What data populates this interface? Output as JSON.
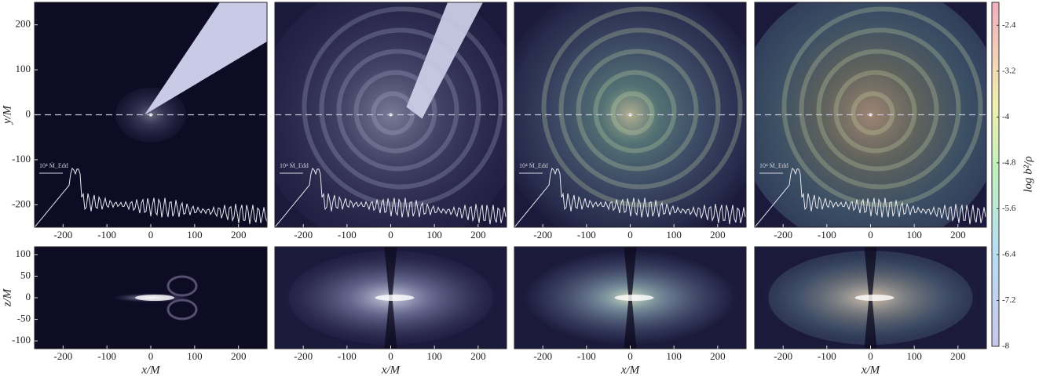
{
  "chart_data": [
    {
      "type": "image",
      "xlim": [
        -265,
        265
      ],
      "ylim": [
        -250,
        250
      ],
      "xticks": [
        -200,
        -100,
        0,
        100,
        200
      ],
      "yticks": [
        -200,
        -100,
        0,
        100,
        200
      ],
      "ylabel": "y/M",
      "annotation": "10⁴ Ṁ_Edd"
    },
    {
      "type": "image",
      "xlim": [
        -265,
        265
      ],
      "ylim": [
        -250,
        250
      ],
      "xticks": [
        -200,
        -100,
        0,
        100,
        200
      ],
      "annotation": "10⁴ Ṁ_Edd"
    },
    {
      "type": "image",
      "xlim": [
        -265,
        265
      ],
      "ylim": [
        -250,
        250
      ],
      "xticks": [
        -200,
        -100,
        0,
        100,
        200
      ],
      "annotation": "10⁴ Ṁ_Edd"
    },
    {
      "type": "image",
      "xlim": [
        -265,
        265
      ],
      "ylim": [
        -250,
        250
      ],
      "xticks": [
        -200,
        -100,
        0,
        100,
        200
      ],
      "annotation": "10⁴ Ṁ_Edd"
    },
    {
      "type": "image",
      "xlim": [
        -265,
        265
      ],
      "ylim": [
        -118,
        118
      ],
      "xticks": [
        -200,
        -100,
        0,
        100,
        200
      ],
      "yticks": [
        -100,
        -50,
        0,
        50,
        100
      ],
      "xlabel": "x/M",
      "ylabel": "z/M"
    },
    {
      "type": "image",
      "xlim": [
        -265,
        265
      ],
      "ylim": [
        -118,
        118
      ],
      "xticks": [
        -200,
        -100,
        0,
        100,
        200
      ],
      "xlabel": "x/M"
    },
    {
      "type": "image",
      "xlim": [
        -265,
        265
      ],
      "ylim": [
        -118,
        118
      ],
      "xticks": [
        -200,
        -100,
        0,
        100,
        200
      ],
      "xlabel": "x/M"
    },
    {
      "type": "image",
      "xlim": [
        -265,
        265
      ],
      "ylim": [
        -118,
        118
      ],
      "xticks": [
        -200,
        -100,
        0,
        100,
        200
      ],
      "xlabel": "x/M"
    },
    {
      "type": "colorbar",
      "label": "log b²/ρ",
      "ylim": [
        -8,
        -2
      ],
      "yticks": [
        -2.4,
        -3.2,
        -4,
        -4.8,
        -5.6,
        -6.4,
        -7.2,
        -8
      ]
    }
  ]
}
